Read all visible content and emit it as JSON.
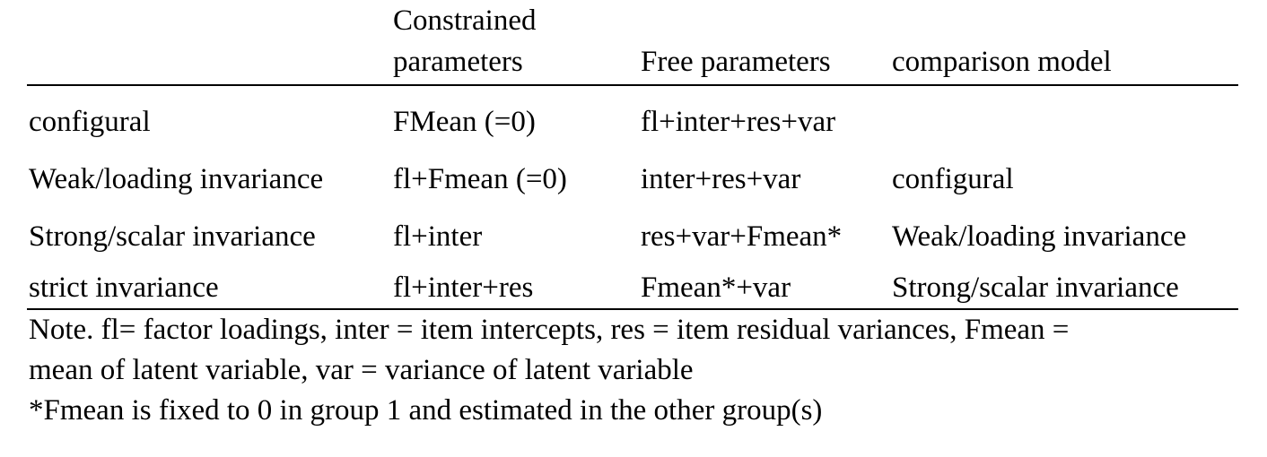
{
  "table": {
    "headers": [
      {
        "line1": "",
        "line2": ""
      },
      {
        "line1": "Constrained",
        "line2": "parameters"
      },
      {
        "line1": "",
        "line2": "Free parameters"
      },
      {
        "line1": "",
        "line2": "comparison model"
      }
    ],
    "rows": [
      [
        "configural",
        "FMean (=0)",
        "fl+inter+res+var",
        ""
      ],
      [
        "Weak/loading invariance",
        "fl+Fmean (=0)",
        "inter+res+var",
        "configural"
      ],
      [
        "Strong/scalar invariance",
        "fl+inter",
        "res+var+Fmean*",
        "Weak/loading invariance"
      ],
      [
        "strict invariance",
        "fl+inter+res",
        "Fmean*+var",
        "Strong/scalar invariance"
      ]
    ]
  },
  "notes": {
    "line1": "Note. fl= factor loadings, inter = item intercepts, res = item residual variances, Fmean =",
    "line2": "mean of latent variable, var = variance of latent variable",
    "line3": "*Fmean is fixed to 0 in group 1 and estimated in the other group(s)"
  }
}
